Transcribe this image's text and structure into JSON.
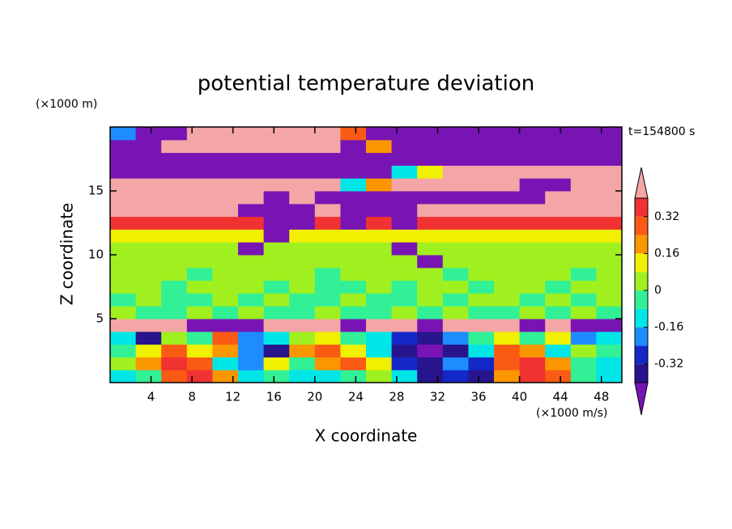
{
  "chart_data": {
    "type": "contour",
    "title": "potential temperature deviation",
    "y_unit": "(×1000 m)",
    "x_unit": "(×1000 m/s)",
    "annotation": "t=154800 s",
    "xlabel": "X coordinate",
    "ylabel": "Z coordinate",
    "xlim": [
      0,
      50
    ],
    "ylim": [
      0,
      20
    ],
    "xticks": [
      4,
      8,
      12,
      16,
      20,
      24,
      28,
      32,
      36,
      40,
      44,
      48
    ],
    "yticks": [
      5,
      10,
      15
    ],
    "levels": [
      -0.4,
      -0.32,
      -0.24,
      -0.16,
      -0.08,
      0,
      0.08,
      0.16,
      0.24,
      0.32,
      0.4
    ],
    "colors": [
      "#7814b4",
      "#28148c",
      "#1428c8",
      "#1e8cff",
      "#00e6e6",
      "#32f096",
      "#a0f020",
      "#f0f000",
      "#fa9600",
      "#fa5a14",
      "#f03232",
      "#f4a6a6"
    ],
    "colorbar_ticks": [
      -0.32,
      -0.16,
      0,
      0.16,
      0.32
    ],
    "x": [
      1.25,
      3.75,
      6.25,
      8.75,
      11.25,
      13.75,
      16.25,
      18.75,
      21.25,
      23.75,
      26.25,
      28.75,
      31.25,
      33.75,
      36.25,
      38.75,
      41.25,
      43.75,
      46.25,
      48.75
    ],
    "y": [
      0.5,
      1.5,
      2.5,
      3.5,
      4.5,
      5.5,
      6.5,
      7.5,
      8.5,
      9.5,
      10.5,
      11.5,
      12.5,
      13.5,
      14.5,
      15.5,
      16.5,
      17.5,
      18.5,
      19.5
    ],
    "z": [
      [
        -0.12,
        -0.04,
        0.28,
        0.36,
        0.2,
        -0.12,
        -0.04,
        -0.12,
        -0.12,
        -0.04,
        0.04,
        -0.12,
        -0.36,
        -0.28,
        -0.36,
        0.2,
        0.36,
        0.28,
        -0.04,
        -0.12
      ],
      [
        0.04,
        0.2,
        0.36,
        0.28,
        -0.12,
        -0.2,
        0.12,
        -0.04,
        0.2,
        0.28,
        0.12,
        -0.28,
        -0.36,
        -0.2,
        -0.28,
        0.28,
        0.36,
        0.2,
        -0.04,
        -0.12
      ],
      [
        -0.04,
        0.12,
        0.28,
        0.12,
        0.2,
        -0.2,
        -0.36,
        0.2,
        0.28,
        0.12,
        -0.12,
        -0.36,
        -0.5,
        -0.36,
        -0.12,
        0.28,
        0.2,
        -0.12,
        0.04,
        -0.04
      ],
      [
        -0.12,
        -0.36,
        0.04,
        -0.04,
        0.28,
        -0.2,
        -0.12,
        0.04,
        0.12,
        -0.04,
        -0.12,
        -0.28,
        -0.36,
        -0.2,
        -0.04,
        0.12,
        -0.04,
        0.12,
        -0.2,
        -0.12
      ],
      [
        0.5,
        0.5,
        0.5,
        -0.5,
        -0.5,
        -0.5,
        0.5,
        0.5,
        0.5,
        -0.5,
        0.5,
        0.5,
        -0.5,
        0.5,
        0.5,
        0.5,
        -0.5,
        0.5,
        -0.5,
        -0.5
      ],
      [
        0.04,
        -0.04,
        -0.04,
        0.04,
        -0.04,
        0.04,
        -0.04,
        -0.04,
        0.04,
        -0.04,
        -0.04,
        0.04,
        -0.04,
        0.04,
        -0.04,
        -0.04,
        0.04,
        -0.04,
        0.04,
        -0.04
      ],
      [
        -0.04,
        0.04,
        -0.04,
        -0.04,
        0.04,
        -0.04,
        0.04,
        -0.04,
        -0.04,
        0.04,
        -0.04,
        -0.04,
        0.04,
        -0.04,
        0.04,
        0.04,
        -0.04,
        0.04,
        -0.04,
        0.04
      ],
      [
        0.04,
        0.04,
        -0.04,
        0.04,
        0.04,
        0.04,
        -0.04,
        0.04,
        -0.04,
        -0.04,
        0.04,
        -0.04,
        0.04,
        0.04,
        -0.04,
        0.04,
        0.04,
        -0.04,
        0.04,
        0.04
      ],
      [
        0.04,
        0.04,
        0.04,
        -0.04,
        0.04,
        0.04,
        0.04,
        0.04,
        -0.04,
        0.04,
        0.04,
        0.04,
        0.04,
        -0.04,
        0.04,
        0.04,
        0.04,
        0.04,
        -0.04,
        0.04
      ],
      [
        0.04,
        0.04,
        0.04,
        0.04,
        0.04,
        0.04,
        0.04,
        0.04,
        0.04,
        0.04,
        0.04,
        0.04,
        -0.5,
        0.04,
        0.04,
        0.04,
        0.04,
        0.04,
        0.04,
        0.04
      ],
      [
        0.04,
        0.04,
        0.04,
        0.04,
        0.04,
        -0.5,
        0.04,
        0.04,
        0.04,
        0.04,
        0.04,
        -0.5,
        0.04,
        0.04,
        0.04,
        0.04,
        0.04,
        0.04,
        0.04,
        0.04
      ],
      [
        0.12,
        0.12,
        0.12,
        0.12,
        0.12,
        0.12,
        -0.5,
        0.12,
        0.12,
        0.12,
        0.12,
        0.12,
        0.12,
        0.12,
        0.12,
        0.12,
        0.12,
        0.12,
        0.12,
        0.12
      ],
      [
        0.36,
        0.36,
        0.36,
        0.36,
        0.36,
        0.36,
        -0.5,
        -0.5,
        0.36,
        -0.5,
        0.36,
        -0.5,
        0.36,
        0.36,
        0.36,
        0.36,
        0.36,
        0.36,
        0.36,
        0.36
      ],
      [
        0.5,
        0.5,
        0.5,
        0.5,
        0.5,
        -0.5,
        -0.5,
        -0.5,
        0.5,
        -0.5,
        -0.5,
        -0.5,
        0.5,
        0.5,
        0.5,
        0.5,
        0.5,
        0.5,
        0.5,
        0.5
      ],
      [
        0.5,
        0.5,
        0.5,
        0.5,
        0.5,
        0.5,
        -0.5,
        0.5,
        -0.5,
        -0.5,
        -0.5,
        -0.5,
        -0.5,
        -0.5,
        -0.5,
        -0.5,
        -0.5,
        0.5,
        0.5,
        0.5
      ],
      [
        0.5,
        0.5,
        0.5,
        0.5,
        0.5,
        0.5,
        0.5,
        0.5,
        0.5,
        -0.12,
        0.2,
        0.5,
        0.5,
        0.5,
        0.5,
        0.5,
        -0.5,
        -0.5,
        0.5,
        0.5
      ],
      [
        -0.5,
        -0.5,
        -0.5,
        -0.5,
        -0.5,
        -0.5,
        -0.5,
        -0.5,
        -0.5,
        -0.5,
        -0.5,
        -0.12,
        0.12,
        0.5,
        0.5,
        0.5,
        0.5,
        0.5,
        0.5,
        0.5
      ],
      [
        -0.5,
        -0.5,
        -0.5,
        -0.5,
        -0.5,
        -0.5,
        -0.5,
        -0.5,
        -0.5,
        -0.5,
        -0.5,
        -0.5,
        -0.5,
        -0.5,
        -0.5,
        -0.5,
        -0.5,
        -0.5,
        -0.5,
        -0.5
      ],
      [
        -0.5,
        -0.5,
        0.5,
        0.5,
        0.5,
        0.5,
        0.5,
        0.5,
        0.5,
        -0.5,
        0.2,
        -0.5,
        -0.5,
        -0.5,
        -0.5,
        -0.5,
        -0.5,
        -0.5,
        -0.5,
        -0.5
      ],
      [
        -0.2,
        -0.5,
        -0.5,
        0.5,
        0.5,
        0.5,
        0.5,
        0.5,
        0.5,
        0.28,
        -0.5,
        -0.5,
        -0.5,
        -0.5,
        -0.5,
        -0.5,
        -0.5,
        -0.5,
        -0.5,
        -0.5
      ]
    ]
  }
}
